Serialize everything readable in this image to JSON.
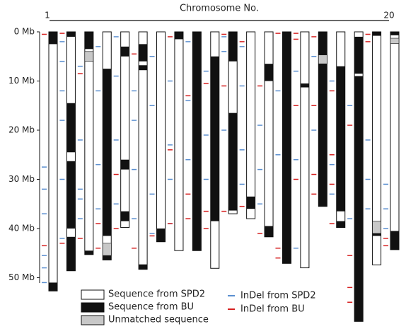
{
  "chart_data": {
    "type": "chromosome-map",
    "title": "Chromosome No.",
    "categories": [
      "1",
      null,
      null,
      null,
      null,
      null,
      null,
      null,
      null,
      null,
      null,
      null,
      null,
      null,
      null,
      null,
      null,
      null,
      null,
      "20"
    ],
    "lengths": [
      52.7,
      48.6,
      45.3,
      46.4,
      39.8,
      48.3,
      42.7,
      44.5,
      44.5,
      48.1,
      37.0,
      38.0,
      41.7,
      47.1,
      48.0,
      35.5,
      39.8,
      58.9,
      47.4,
      44.3
    ],
    "bu": [
      [
        [
          0,
          2.5
        ],
        [
          51,
          52.7
        ]
      ],
      [
        [
          0,
          1
        ],
        [
          14.5,
          24.5
        ],
        [
          26.3,
          40
        ],
        [
          41.7,
          48.6
        ]
      ],
      [
        [
          0,
          3.5
        ],
        [
          44.5,
          45.3
        ]
      ],
      [
        [
          7.5,
          41.5
        ],
        [
          45.5,
          46.4
        ]
      ],
      [
        [
          3,
          5
        ],
        [
          26,
          28
        ],
        [
          36.5,
          38.5
        ]
      ],
      [
        [
          2.5,
          6
        ],
        [
          6.8,
          7.8
        ],
        [
          47.3,
          48.3
        ]
      ],
      [
        [
          40,
          42.7
        ]
      ],
      [
        [
          0,
          1.5
        ]
      ],
      [
        [
          0,
          44.5
        ]
      ],
      [
        [
          5,
          38.5
        ]
      ],
      [
        [
          0,
          6
        ],
        [
          16.5,
          36.3
        ]
      ],
      [
        [
          33.5,
          36
        ]
      ],
      [
        [
          6.5,
          10
        ],
        [
          39.5,
          41.7
        ]
      ],
      [
        [
          0,
          47.1
        ]
      ],
      [
        [
          10.5,
          11.3
        ]
      ],
      [
        [
          0,
          4.7
        ],
        [
          6.5,
          35.5
        ]
      ],
      [
        [
          7,
          36.5
        ],
        [
          38.5,
          39.8
        ]
      ],
      [
        [
          1,
          8.5
        ],
        [
          9,
          58.9
        ]
      ],
      [
        [
          0,
          0.8
        ],
        [
          41,
          41.5
        ]
      ],
      [
        [
          0,
          0.7
        ],
        [
          40.5,
          44.3
        ]
      ]
    ],
    "unmatched": [
      [],
      [],
      [
        [
          4,
          6
        ]
      ],
      [
        [
          43,
          45.5
        ]
      ],
      [],
      [],
      [],
      [],
      [],
      [],
      [
        [
          35.6,
          36.3
        ]
      ],
      [],
      [],
      [],
      [],
      [
        [
          4.7,
          6.5
        ]
      ],
      [],
      [],
      [
        [
          38.5,
          41
        ]
      ],
      [
        [
          1.3,
          2.4
        ]
      ]
    ],
    "indel_spd2": [
      [
        27.5,
        32,
        37,
        45.5,
        48,
        51
      ],
      [
        2,
        6,
        12,
        18,
        30,
        42
      ],
      [
        7,
        22,
        32,
        34,
        38
      ],
      [
        3,
        12,
        27,
        36
      ],
      [
        1,
        9,
        22,
        35
      ],
      [
        12,
        18,
        28,
        38
      ],
      [
        5,
        15,
        33,
        41
      ],
      [
        10,
        23,
        30,
        39
      ],
      [
        2,
        14,
        26
      ],
      [
        8,
        21,
        30
      ],
      [
        1,
        4,
        20
      ],
      [
        3,
        11,
        24,
        31
      ],
      [
        19,
        28,
        35
      ],
      [
        12,
        25,
        44
      ],
      [
        8,
        26,
        44
      ],
      [
        5,
        20
      ],
      [
        10,
        27,
        33
      ],
      [
        15,
        38
      ],
      [
        22,
        30,
        36
      ],
      [
        31,
        36,
        40
      ]
    ],
    "indel_bu": [
      [
        0.5,
        43.5
      ],
      [
        0.3,
        43
      ],
      [
        8.5,
        42
      ],
      [
        39,
        44
      ],
      [
        29,
        40
      ],
      [
        4.5,
        44
      ],
      [
        41.5
      ],
      [
        1,
        24,
        39
      ],
      [
        13,
        33,
        38
      ],
      [
        10.5,
        36.5,
        40
      ],
      [
        0.5,
        11,
        36.5
      ],
      [
        2,
        35.5
      ],
      [
        11,
        41
      ],
      [
        0.3,
        44,
        46
      ],
      [
        0.3,
        1.5,
        15,
        30
      ],
      [
        1,
        15,
        29,
        33
      ],
      [
        12,
        25,
        31,
        39
      ],
      [
        19,
        45.5,
        52,
        55
      ],
      [
        0.5,
        2
      ],
      [
        42,
        43.5
      ]
    ],
    "legend": [
      {
        "name": "Sequence from SPD2",
        "color": "#ffffff"
      },
      {
        "name": "Sequence from BU",
        "color": "#111111"
      },
      {
        "name": "Unmatched sequence",
        "color": "#c8c8c8"
      },
      {
        "name": "InDel from SPD2",
        "color": "#5b8fd0"
      },
      {
        "name": "InDel from BU",
        "color": "#d62020"
      }
    ],
    "ylim": [
      0,
      59
    ],
    "yticks": [
      {
        "value": 0,
        "label": "0 Mb"
      },
      {
        "value": 10,
        "label": "10 Mb"
      },
      {
        "value": 20,
        "label": "20 Mb"
      },
      {
        "value": 30,
        "label": "30 Mb"
      },
      {
        "value": 40,
        "label": "40 Mb"
      },
      {
        "value": 50,
        "label": "50 Mb"
      }
    ]
  }
}
